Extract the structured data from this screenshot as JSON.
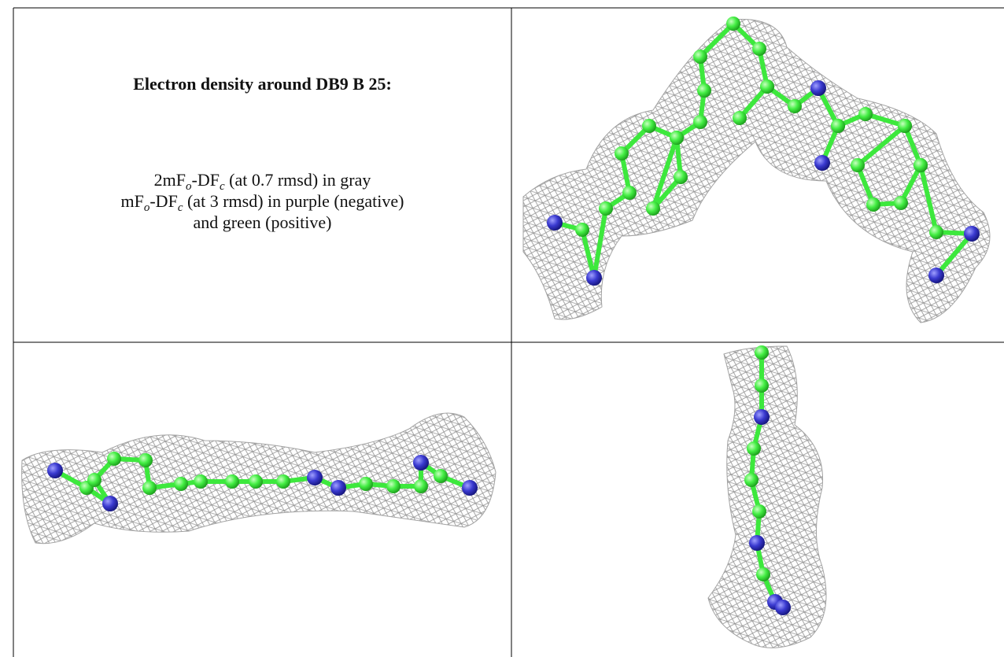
{
  "legend": {
    "title": "Electron density around DB9 B 25:",
    "lines": [
      [
        "2mF",
        "o",
        "-DF",
        "c",
        " (at 0.7 rmsd) in gray"
      ],
      [
        "mF",
        "o",
        "-DF",
        "c",
        " (at 3 rmsd) in purple (negative)"
      ],
      [
        "and green (positive)"
      ]
    ]
  }
}
